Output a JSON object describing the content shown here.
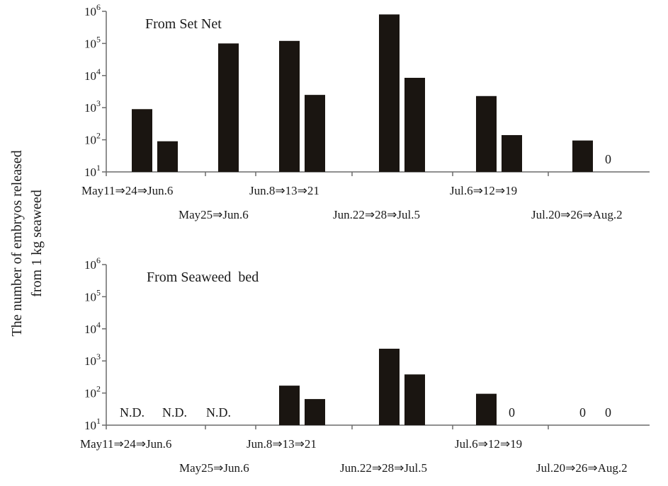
{
  "chart_data": [
    {
      "type": "bar",
      "title": "From Set Net",
      "ylabel": "The number of embryos released from 1 kg seaweed",
      "yscale": "log",
      "ylim": [
        10,
        1000000
      ],
      "yticks": [
        "10^1",
        "10^2",
        "10^3",
        "10^4",
        "10^5",
        "10^6"
      ],
      "groups": [
        {
          "label": "May11⇒24⇒Jun.6",
          "values": [
            900,
            90
          ],
          "notes": []
        },
        {
          "label": "May25⇒Jun.6",
          "values": [
            100000
          ],
          "notes": []
        },
        {
          "label": "Jun.8⇒13⇒21",
          "values": [
            120000,
            2500
          ],
          "notes": []
        },
        {
          "label": "Jun.22⇒28⇒Jul.5",
          "values": [
            800000,
            8500
          ],
          "notes": []
        },
        {
          "label": "Jul.6⇒12⇒19",
          "values": [
            2300,
            140
          ],
          "notes": []
        },
        {
          "label": "Jul.20⇒26⇒Aug.2",
          "values": [
            95
          ],
          "notes": [
            "0"
          ]
        }
      ]
    },
    {
      "type": "bar",
      "title": "From Seaweed  bed",
      "ylabel": "The number of embryos released from 1 kg seaweed",
      "yscale": "log",
      "ylim": [
        10,
        1000000
      ],
      "yticks": [
        "10^1",
        "10^2",
        "10^3",
        "10^4",
        "10^5",
        "10^6"
      ],
      "groups": [
        {
          "label": "May11⇒24⇒Jun.6",
          "values": [],
          "notes": [
            "N.D.",
            "N.D."
          ]
        },
        {
          "label": "May25⇒Jun.6",
          "values": [],
          "notes": [
            "N.D."
          ]
        },
        {
          "label": "Jun.8⇒13⇒21",
          "values": [
            170,
            65
          ],
          "notes": []
        },
        {
          "label": "Jun.22⇒28⇒Jul.5",
          "values": [
            2400,
            380
          ],
          "notes": []
        },
        {
          "label": "Jul.6⇒12⇒19",
          "values": [
            95
          ],
          "notes": [
            "0"
          ]
        },
        {
          "label": "Jul.20⇒26⇒Aug.2",
          "values": [],
          "notes": [
            "0",
            "0"
          ]
        }
      ]
    }
  ]
}
